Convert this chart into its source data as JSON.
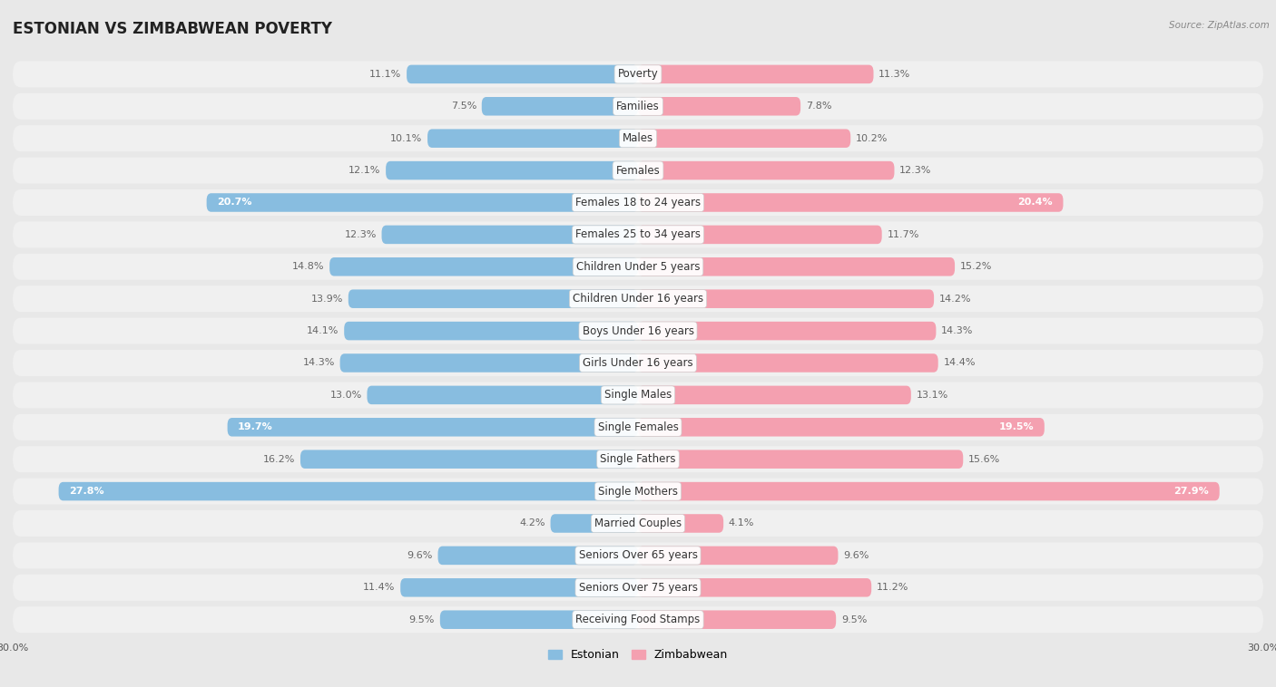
{
  "title": "ESTONIAN VS ZIMBABWEAN POVERTY",
  "source": "Source: ZipAtlas.com",
  "categories": [
    "Poverty",
    "Families",
    "Males",
    "Females",
    "Females 18 to 24 years",
    "Females 25 to 34 years",
    "Children Under 5 years",
    "Children Under 16 years",
    "Boys Under 16 years",
    "Girls Under 16 years",
    "Single Males",
    "Single Females",
    "Single Fathers",
    "Single Mothers",
    "Married Couples",
    "Seniors Over 65 years",
    "Seniors Over 75 years",
    "Receiving Food Stamps"
  ],
  "estonian": [
    11.1,
    7.5,
    10.1,
    12.1,
    20.7,
    12.3,
    14.8,
    13.9,
    14.1,
    14.3,
    13.0,
    19.7,
    16.2,
    27.8,
    4.2,
    9.6,
    11.4,
    9.5
  ],
  "zimbabwean": [
    11.3,
    7.8,
    10.2,
    12.3,
    20.4,
    11.7,
    15.2,
    14.2,
    14.3,
    14.4,
    13.1,
    19.5,
    15.6,
    27.9,
    4.1,
    9.6,
    11.2,
    9.5
  ],
  "estonian_color": "#88bde0",
  "zimbabwean_color": "#f4a0b0",
  "bar_height": 0.58,
  "xlim": 30.0,
  "background_color": "#e8e8e8",
  "row_fill_color": "#f0f0f0",
  "bar_bg_color": "#ffffff",
  "legend_labels": [
    "Estonian",
    "Zimbabwean"
  ],
  "title_fontsize": 12,
  "label_fontsize": 8.5,
  "value_fontsize": 8,
  "axis_fontsize": 8,
  "large_threshold": 19.0
}
